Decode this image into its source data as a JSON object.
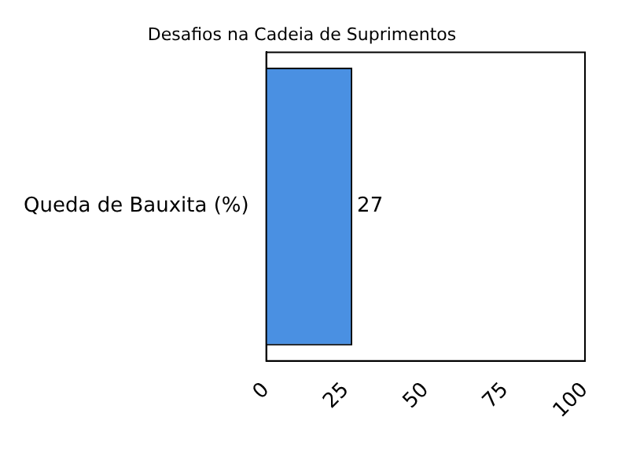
{
  "chart_data": {
    "type": "bar",
    "orientation": "horizontal",
    "title": "Desafios na Cadeia de Suprimentos",
    "categories": [
      "Queda de Bauxita (%)"
    ],
    "values": [
      27
    ],
    "color": "#4a90e2",
    "xlim": [
      0,
      100
    ],
    "xticks": [
      0,
      25,
      50,
      75,
      100
    ],
    "grid": false,
    "data_labels": true
  }
}
